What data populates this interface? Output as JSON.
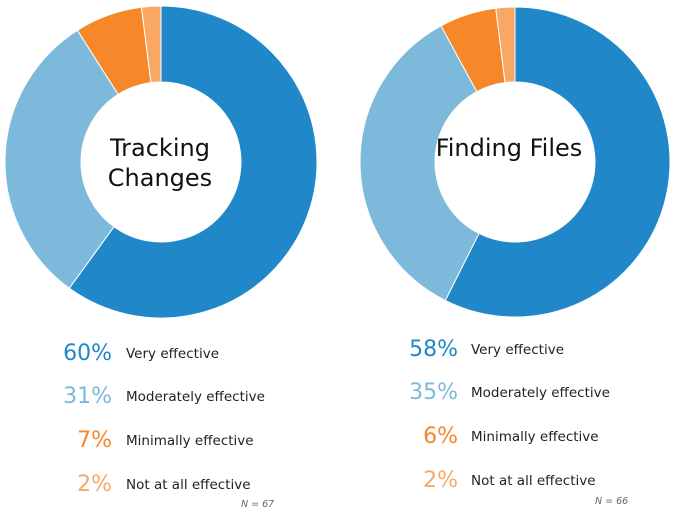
{
  "chart_data": [
    {
      "type": "pie",
      "title": "Tracking Changes",
      "n_label": "N = 67",
      "slices": [
        {
          "label": "Very effective",
          "value": 60,
          "pct_text": "60%",
          "color": "#2088c8"
        },
        {
          "label": "Moderately effective",
          "value": 31,
          "pct_text": "31%",
          "color": "#7db9da"
        },
        {
          "label": "Minimally effective",
          "value": 7,
          "pct_text": "7%",
          "color": "#f7882a"
        },
        {
          "label": "Not at all effective",
          "value": 2,
          "pct_text": "2%",
          "color": "#f9a864"
        }
      ]
    },
    {
      "type": "pie",
      "title": "Finding Files",
      "n_label": "N = 66",
      "slices": [
        {
          "label": "Very effective",
          "value": 58,
          "pct_text": "58%",
          "color": "#2088c8"
        },
        {
          "label": "Moderately effective",
          "value": 35,
          "pct_text": "35%",
          "color": "#7db9da"
        },
        {
          "label": "Minimally effective",
          "value": 6,
          "pct_text": "6%",
          "color": "#f7882a"
        },
        {
          "label": "Not at all effective",
          "value": 2,
          "pct_text": "2%",
          "color": "#f9a864"
        }
      ]
    }
  ]
}
